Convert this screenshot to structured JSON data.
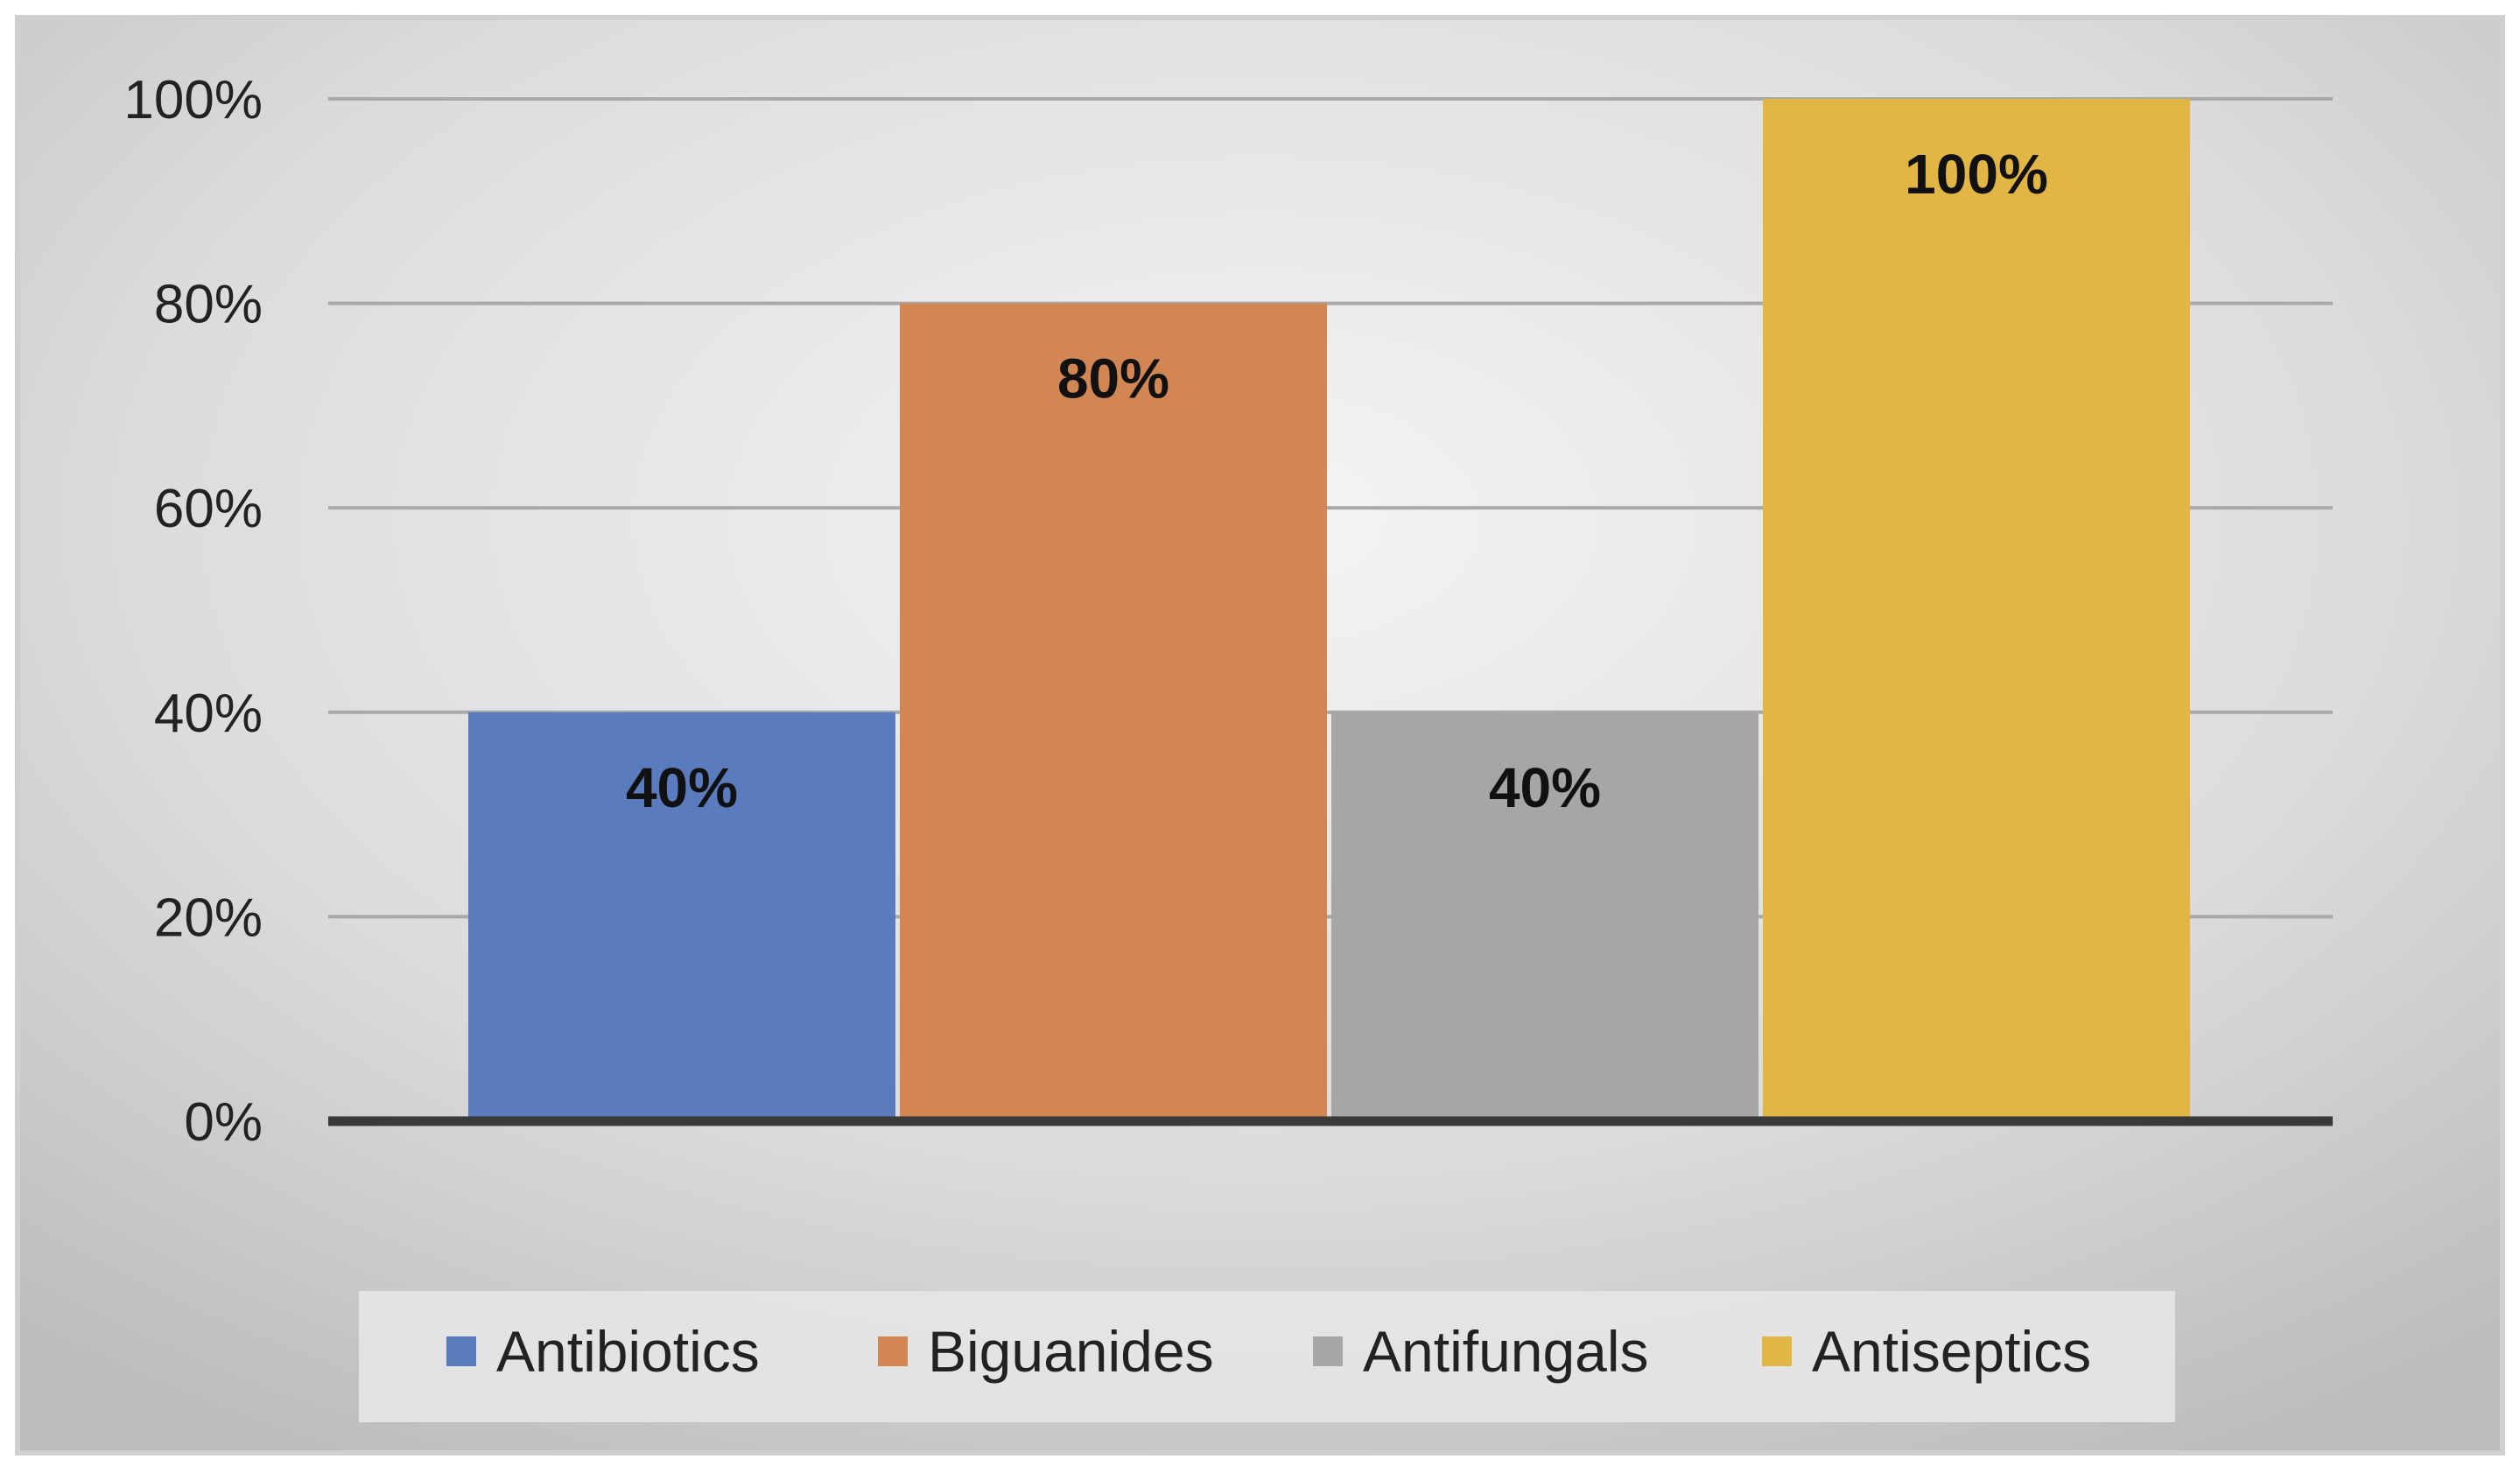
{
  "chart_data": {
    "type": "bar",
    "title": "",
    "xlabel": "",
    "ylabel": "",
    "ylim": [
      0,
      100
    ],
    "yticks": [
      "0%",
      "20%",
      "40%",
      "60%",
      "80%",
      "100%"
    ],
    "ytick_values": [
      0,
      20,
      40,
      60,
      80,
      100
    ],
    "grid": true,
    "legend_position": "bottom",
    "series": [
      {
        "name": "Antibiotics",
        "value": 40,
        "label": "40%",
        "color": "#5b7bbf"
      },
      {
        "name": "Biguanides",
        "value": 80,
        "label": "80%",
        "color": "#d28654"
      },
      {
        "name": "Antifungals",
        "value": 40,
        "label": "40%",
        "color": "#a6a6a6"
      },
      {
        "name": "Antiseptics",
        "value": 100,
        "label": "100%",
        "color": "#e2b645"
      }
    ]
  }
}
